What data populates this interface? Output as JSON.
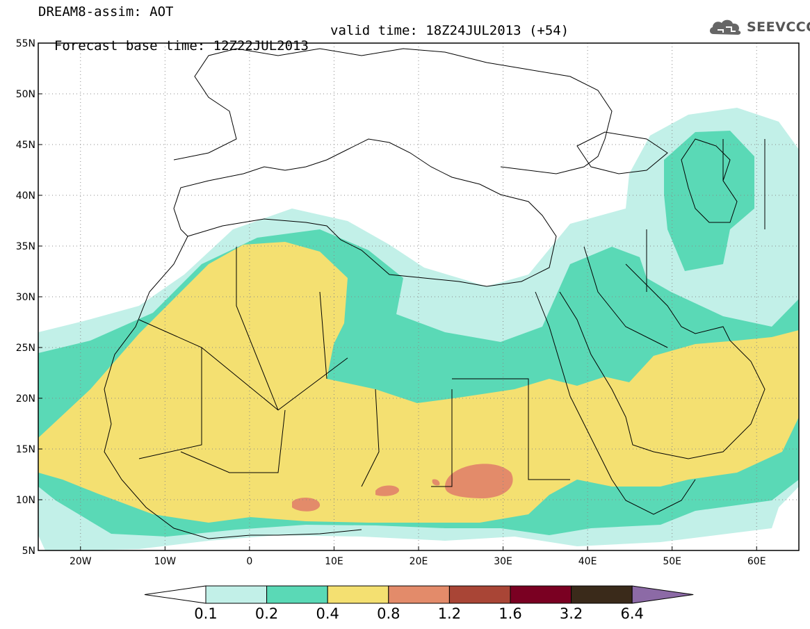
{
  "header": {
    "title": "DREAM8-assim: AOT",
    "base_time": "Forecast base time: 12Z22JUL2013",
    "valid_time": "valid time: 18Z24JUL2013 (+54)"
  },
  "logo": {
    "text": "SEEVCCC",
    "icon": "cloud-icon"
  },
  "map": {
    "lon_range": [
      -25,
      65
    ],
    "lat_range": [
      5,
      55
    ],
    "lon_ticks": [
      {
        "value": -20,
        "label": "20W"
      },
      {
        "value": -10,
        "label": "10W"
      },
      {
        "value": 0,
        "label": "0"
      },
      {
        "value": 10,
        "label": "10E"
      },
      {
        "value": 20,
        "label": "20E"
      },
      {
        "value": 30,
        "label": "30E"
      },
      {
        "value": 40,
        "label": "40E"
      },
      {
        "value": 50,
        "label": "50E"
      },
      {
        "value": 60,
        "label": "60E"
      }
    ],
    "lat_ticks": [
      {
        "value": 5,
        "label": "5N"
      },
      {
        "value": 10,
        "label": "10N"
      },
      {
        "value": 15,
        "label": "15N"
      },
      {
        "value": 20,
        "label": "20N"
      },
      {
        "value": 25,
        "label": "25N"
      },
      {
        "value": 30,
        "label": "30N"
      },
      {
        "value": 35,
        "label": "35N"
      },
      {
        "value": 40,
        "label": "40N"
      },
      {
        "value": 45,
        "label": "45N"
      },
      {
        "value": 50,
        "label": "50N"
      },
      {
        "value": 55,
        "label": "55N"
      }
    ],
    "gridlines": "dotted"
  },
  "colorbar": {
    "labels": [
      "0.1",
      "0.2",
      "0.4",
      "0.8",
      "1.2",
      "1.6",
      "3.2",
      "6.4"
    ],
    "colors": [
      "#ffffff",
      "#c2f0e8",
      "#5ad9b6",
      "#f4e071",
      "#e38b6a",
      "#a94536",
      "#7a0022",
      "#3a2a1a",
      "#8c6aa6"
    ]
  },
  "colors": {
    "aot_0_1_0_2": "#c2f0e8",
    "aot_0_2_0_4": "#5ad9b6",
    "aot_0_4_0_8": "#f4e071",
    "aot_0_8_1_2": "#e38b6a",
    "coastline": "#000000"
  }
}
